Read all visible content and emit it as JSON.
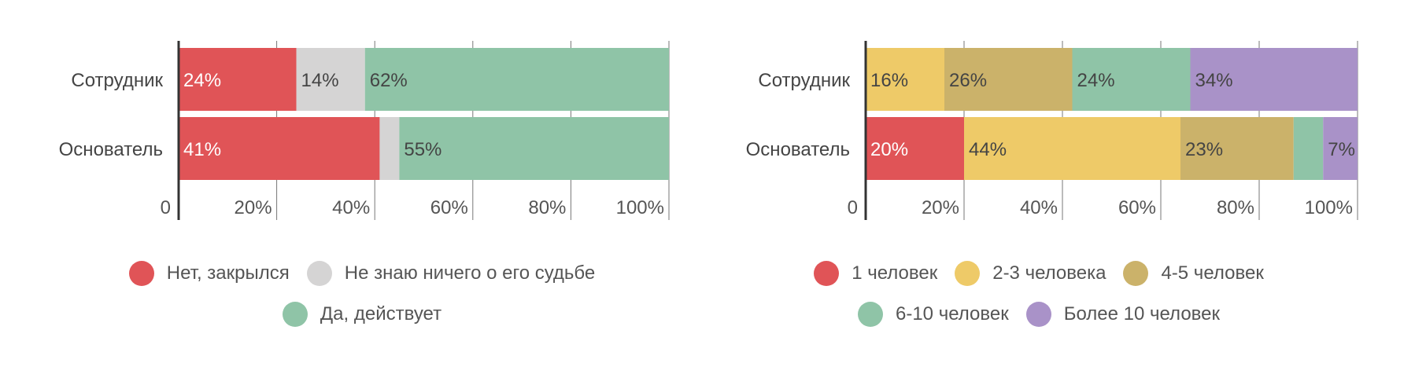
{
  "chart_data": [
    {
      "type": "bar",
      "orientation": "horizontal",
      "stacked": true,
      "categories": [
        "Сотрудник",
        "Основатель"
      ],
      "x_ticks": [
        "0",
        "20%",
        "40%",
        "60%",
        "80%",
        "100%"
      ],
      "xlim": [
        0,
        100
      ],
      "grid": true,
      "legend_position": "bottom",
      "series": [
        {
          "name": "Нет, закрылся",
          "color": "#e05457",
          "values": [
            24,
            41
          ],
          "labels": [
            "24%",
            "41%"
          ]
        },
        {
          "name": "Не знаю ничего о его судьбе",
          "color": "#d5d4d4",
          "values": [
            14,
            4
          ],
          "labels": [
            "14%",
            ""
          ]
        },
        {
          "name": "Да, действует",
          "color": "#8fc4a7",
          "values": [
            62,
            55
          ],
          "labels": [
            "62%",
            "55%"
          ]
        }
      ]
    },
    {
      "type": "bar",
      "orientation": "horizontal",
      "stacked": true,
      "categories": [
        "Сотрудник",
        "Основатель"
      ],
      "x_ticks": [
        "0",
        "20%",
        "40%",
        "60%",
        "80%",
        "100%"
      ],
      "xlim": [
        0,
        100
      ],
      "grid": true,
      "legend_position": "bottom",
      "series": [
        {
          "name": "1 человек",
          "color": "#e05457",
          "values": [
            0,
            20
          ],
          "labels": [
            "",
            "20%"
          ]
        },
        {
          "name": "2-3 человека",
          "color": "#eeca68",
          "values": [
            16,
            44
          ],
          "labels": [
            "16%",
            "44%"
          ]
        },
        {
          "name": "4-5 человек",
          "color": "#cbb26a",
          "values": [
            26,
            23
          ],
          "labels": [
            "26%",
            "23%"
          ]
        },
        {
          "name": "6-10 человек",
          "color": "#8fc4a7",
          "values": [
            24,
            6
          ],
          "labels": [
            "24%",
            ""
          ]
        },
        {
          "name": "Более 10 человек",
          "color": "#a992c8",
          "values": [
            34,
            7
          ],
          "labels": [
            "34%",
            "7%"
          ]
        }
      ]
    }
  ]
}
